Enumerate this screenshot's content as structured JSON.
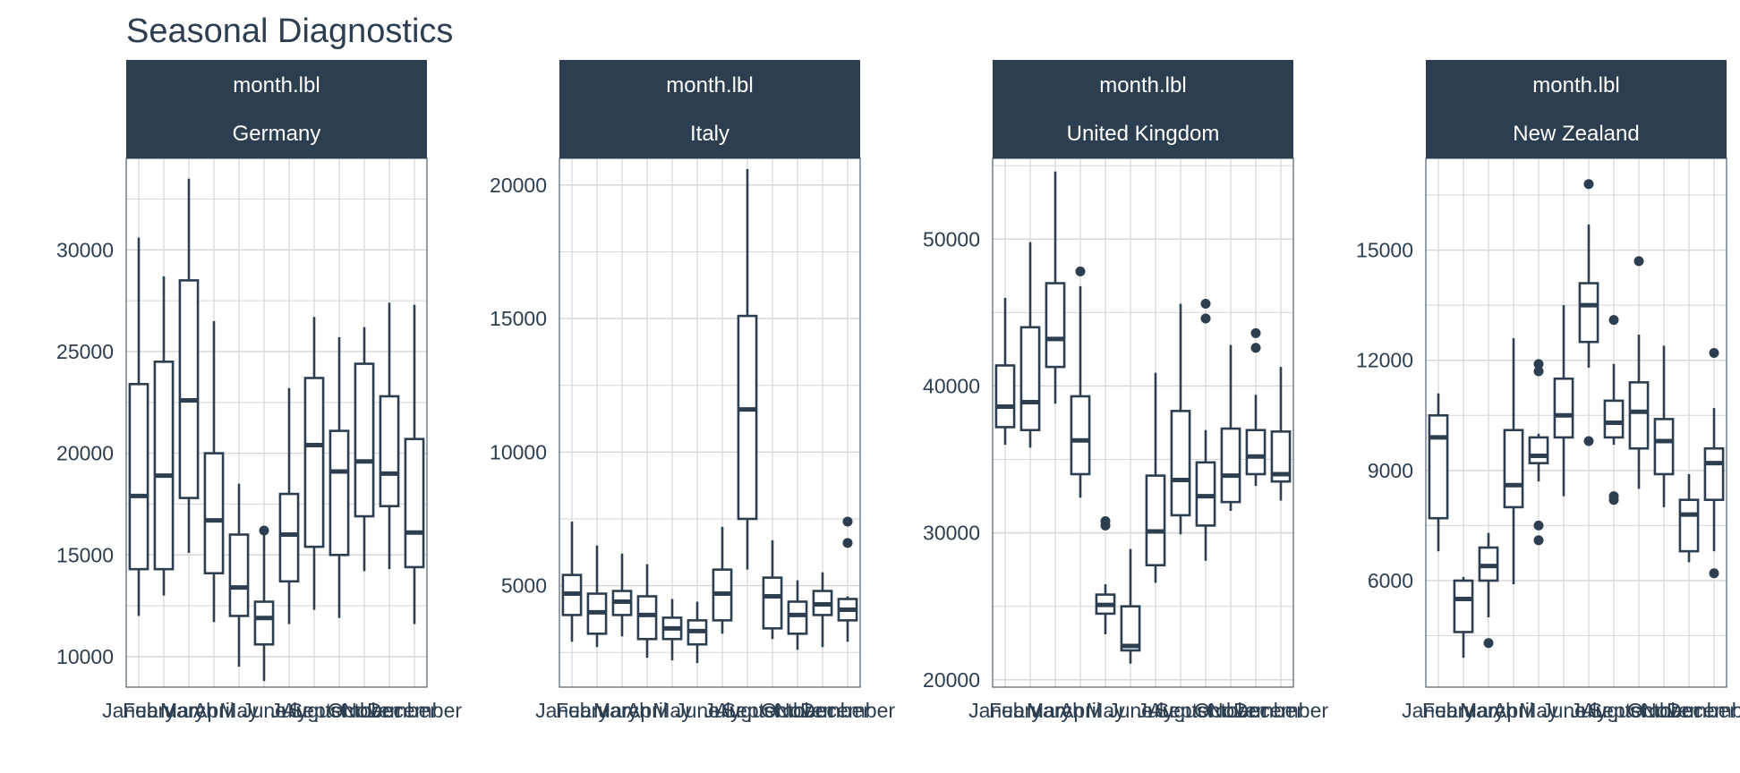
{
  "chart_data": {
    "type": "boxplot",
    "title": "Seasonal Diagnostics",
    "facet_variable": "month.lbl",
    "colors": {
      "strip": "#2c3e50",
      "strip_text": "#ffffff",
      "box": "#2c3e50",
      "grid": "#d6d6d6",
      "text": "#2c3e50"
    },
    "categories": [
      "January",
      "February",
      "March",
      "April",
      "May",
      "June",
      "July",
      "August",
      "September",
      "October",
      "November",
      "December"
    ],
    "panels": [
      {
        "name": "Germany",
        "strip": [
          "month.lbl",
          "Germany"
        ],
        "ylim": [
          8500,
          34500
        ],
        "yticks": [
          10000,
          15000,
          20000,
          25000,
          30000
        ],
        "ytick_labels": [
          "10000",
          "15000",
          "20000",
          "25000",
          "30000"
        ],
        "boxes": [
          {
            "month": "January",
            "min": 12000,
            "q1": 14300,
            "median": 17900,
            "q3": 23400,
            "max": 30600,
            "outliers": []
          },
          {
            "month": "February",
            "min": 13000,
            "q1": 14300,
            "median": 18900,
            "q3": 24500,
            "max": 28700,
            "outliers": []
          },
          {
            "month": "March",
            "min": 15100,
            "q1": 17800,
            "median": 22600,
            "q3": 28500,
            "max": 33500,
            "outliers": []
          },
          {
            "month": "April",
            "min": 11700,
            "q1": 14100,
            "median": 16700,
            "q3": 20000,
            "max": 26500,
            "outliers": []
          },
          {
            "month": "May",
            "min": 9500,
            "q1": 12000,
            "median": 13400,
            "q3": 16000,
            "max": 18500,
            "outliers": []
          },
          {
            "month": "June",
            "min": 8800,
            "q1": 10600,
            "median": 11900,
            "q3": 12700,
            "max": 16000,
            "outliers": [
              16200
            ]
          },
          {
            "month": "July",
            "min": 11600,
            "q1": 13700,
            "median": 16000,
            "q3": 18000,
            "max": 23200,
            "outliers": []
          },
          {
            "month": "August",
            "min": 12300,
            "q1": 15400,
            "median": 20400,
            "q3": 23700,
            "max": 26700,
            "outliers": []
          },
          {
            "month": "September",
            "min": 11900,
            "q1": 15000,
            "median": 19100,
            "q3": 21100,
            "max": 25700,
            "outliers": []
          },
          {
            "month": "October",
            "min": 14200,
            "q1": 16900,
            "median": 19600,
            "q3": 24400,
            "max": 26200,
            "outliers": []
          },
          {
            "month": "November",
            "min": 14300,
            "q1": 17400,
            "median": 19000,
            "q3": 22800,
            "max": 27400,
            "outliers": []
          },
          {
            "month": "December",
            "min": 11600,
            "q1": 14400,
            "median": 16100,
            "q3": 20700,
            "max": 27300,
            "outliers": []
          }
        ]
      },
      {
        "name": "Italy",
        "strip": [
          "month.lbl",
          "Italy"
        ],
        "ylim": [
          1200,
          21000
        ],
        "yticks": [
          5000,
          10000,
          15000,
          20000
        ],
        "ytick_labels": [
          "5000",
          "10000",
          "15000",
          "20000"
        ],
        "boxes": [
          {
            "month": "January",
            "min": 2900,
            "q1": 3900,
            "median": 4700,
            "q3": 5400,
            "max": 7400,
            "outliers": []
          },
          {
            "month": "February",
            "min": 2700,
            "q1": 3200,
            "median": 4000,
            "q3": 4700,
            "max": 6500,
            "outliers": []
          },
          {
            "month": "March",
            "min": 3100,
            "q1": 3900,
            "median": 4400,
            "q3": 4800,
            "max": 6200,
            "outliers": []
          },
          {
            "month": "April",
            "min": 2300,
            "q1": 3000,
            "median": 3900,
            "q3": 4600,
            "max": 5800,
            "outliers": []
          },
          {
            "month": "May",
            "min": 2200,
            "q1": 3000,
            "median": 3400,
            "q3": 3800,
            "max": 4500,
            "outliers": []
          },
          {
            "month": "June",
            "min": 2100,
            "q1": 2800,
            "median": 3300,
            "q3": 3700,
            "max": 4400,
            "outliers": []
          },
          {
            "month": "July",
            "min": 3200,
            "q1": 3700,
            "median": 4700,
            "q3": 5600,
            "max": 7200,
            "outliers": []
          },
          {
            "month": "August",
            "min": 5600,
            "q1": 7500,
            "median": 11600,
            "q3": 15100,
            "max": 20600,
            "outliers": []
          },
          {
            "month": "September",
            "min": 3000,
            "q1": 3400,
            "median": 4600,
            "q3": 5300,
            "max": 6700,
            "outliers": []
          },
          {
            "month": "October",
            "min": 2600,
            "q1": 3200,
            "median": 3900,
            "q3": 4400,
            "max": 5200,
            "outliers": []
          },
          {
            "month": "November",
            "min": 2700,
            "q1": 3900,
            "median": 4300,
            "q3": 4800,
            "max": 5500,
            "outliers": []
          },
          {
            "month": "December",
            "min": 2900,
            "q1": 3700,
            "median": 4100,
            "q3": 4500,
            "max": 4600,
            "outliers": [
              6600,
              7400
            ]
          }
        ]
      },
      {
        "name": "United Kingdom",
        "strip": [
          "month.lbl",
          "United Kingdom"
        ],
        "ylim": [
          19500,
          55500
        ],
        "yticks": [
          20000,
          30000,
          40000,
          50000
        ],
        "ytick_labels": [
          "20000",
          "30000",
          "40000",
          "50000"
        ],
        "boxes": [
          {
            "month": "January",
            "min": 36000,
            "q1": 37200,
            "median": 38600,
            "q3": 41400,
            "max": 46000,
            "outliers": []
          },
          {
            "month": "February",
            "min": 35800,
            "q1": 37000,
            "median": 38900,
            "q3": 44000,
            "max": 49800,
            "outliers": []
          },
          {
            "month": "March",
            "min": 38800,
            "q1": 41300,
            "median": 43200,
            "q3": 47000,
            "max": 54600,
            "outliers": []
          },
          {
            "month": "April",
            "min": 32400,
            "q1": 34000,
            "median": 36300,
            "q3": 39300,
            "max": 46800,
            "outliers": [
              47800
            ]
          },
          {
            "month": "May",
            "min": 23100,
            "q1": 24500,
            "median": 25100,
            "q3": 25800,
            "max": 26500,
            "outliers": [
              30500,
              30800
            ]
          },
          {
            "month": "June",
            "min": 21100,
            "q1": 22000,
            "median": 22300,
            "q3": 25000,
            "max": 28900,
            "outliers": []
          },
          {
            "month": "July",
            "min": 26600,
            "q1": 27800,
            "median": 30100,
            "q3": 33900,
            "max": 40900,
            "outliers": []
          },
          {
            "month": "August",
            "min": 29900,
            "q1": 31200,
            "median": 33600,
            "q3": 38300,
            "max": 45600,
            "outliers": []
          },
          {
            "month": "September",
            "min": 28100,
            "q1": 30500,
            "median": 32500,
            "q3": 34800,
            "max": 37000,
            "outliers": [
              44600,
              45600
            ]
          },
          {
            "month": "October",
            "min": 31500,
            "q1": 32100,
            "median": 33900,
            "q3": 37100,
            "max": 42800,
            "outliers": []
          },
          {
            "month": "November",
            "min": 33200,
            "q1": 34000,
            "median": 35200,
            "q3": 37000,
            "max": 39400,
            "outliers": [
              42600,
              43600
            ]
          },
          {
            "month": "December",
            "min": 32200,
            "q1": 33500,
            "median": 34000,
            "q3": 36900,
            "max": 41300,
            "outliers": []
          }
        ]
      },
      {
        "name": "New Zealand",
        "strip": [
          "month.lbl",
          "New Zealand"
        ],
        "ylim": [
          3100,
          17500
        ],
        "yticks": [
          6000,
          9000,
          12000,
          15000
        ],
        "ytick_labels": [
          "6000",
          "9000",
          "12000",
          "15000"
        ],
        "boxes": [
          {
            "month": "January",
            "min": 6800,
            "q1": 7700,
            "median": 9900,
            "q3": 10500,
            "max": 11100,
            "outliers": []
          },
          {
            "month": "February",
            "min": 3900,
            "q1": 4600,
            "median": 5500,
            "q3": 6000,
            "max": 6100,
            "outliers": []
          },
          {
            "month": "March",
            "min": 5000,
            "q1": 6000,
            "median": 6400,
            "q3": 6900,
            "max": 7300,
            "outliers": [
              4300
            ]
          },
          {
            "month": "April",
            "min": 5900,
            "q1": 8000,
            "median": 8600,
            "q3": 10100,
            "max": 12600,
            "outliers": []
          },
          {
            "month": "May",
            "min": 8700,
            "q1": 9200,
            "median": 9400,
            "q3": 9900,
            "max": 10000,
            "outliers": [
              7100,
              7500,
              11700,
              11900
            ]
          },
          {
            "month": "June",
            "min": 8300,
            "q1": 9900,
            "median": 10500,
            "q3": 11500,
            "max": 13500,
            "outliers": []
          },
          {
            "month": "July",
            "min": 11800,
            "q1": 12500,
            "median": 13500,
            "q3": 14100,
            "max": 15700,
            "outliers": [
              9800,
              16800
            ]
          },
          {
            "month": "August",
            "min": 9700,
            "q1": 9900,
            "median": 10300,
            "q3": 10900,
            "max": 11900,
            "outliers": [
              8200,
              8300,
              13100
            ]
          },
          {
            "month": "September",
            "min": 8500,
            "q1": 9600,
            "median": 10600,
            "q3": 11400,
            "max": 12700,
            "outliers": [
              14700
            ]
          },
          {
            "month": "October",
            "min": 8000,
            "q1": 8900,
            "median": 9800,
            "q3": 10400,
            "max": 12400,
            "outliers": []
          },
          {
            "month": "November",
            "min": 6500,
            "q1": 6800,
            "median": 7800,
            "q3": 8200,
            "max": 8900,
            "outliers": []
          },
          {
            "month": "December",
            "min": 6800,
            "q1": 8200,
            "median": 9200,
            "q3": 9600,
            "max": 10700,
            "outliers": [
              6200,
              12200
            ]
          }
        ]
      }
    ]
  }
}
